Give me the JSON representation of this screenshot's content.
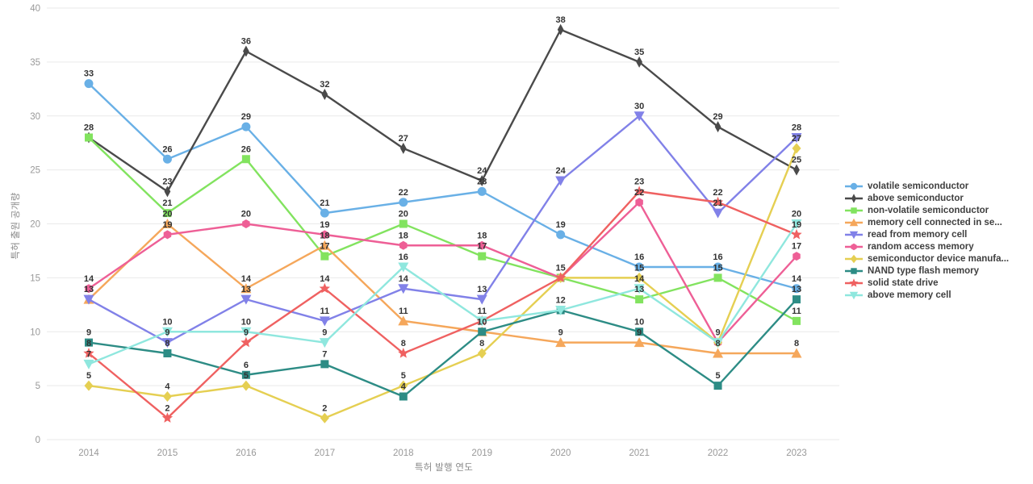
{
  "chart": {
    "xlabel": "특허 발행 연도",
    "ylabel": "특허 출원 공개량"
  },
  "chart_data": {
    "type": "line",
    "title": "",
    "xlabel": "특허 발행 연도",
    "ylabel": "특허 출원 공개량",
    "x": [
      2014,
      2015,
      2016,
      2017,
      2018,
      2019,
      2020,
      2021,
      2022,
      2023
    ],
    "ylim": [
      0,
      40
    ],
    "yticks": [
      0,
      5,
      10,
      15,
      20,
      25,
      30,
      35,
      40
    ],
    "grid": "horizontal-only",
    "legend_position": "right",
    "point_labels": true,
    "colors": {
      "grid": "#e9e9e9",
      "tick_text": "#999999",
      "point_label_text": "#333333"
    },
    "series": [
      {
        "name": "volatile semiconductor",
        "color": "#69b0e6",
        "marker": "circle",
        "values": [
          33,
          26,
          29,
          21,
          22,
          23,
          19,
          16,
          16,
          14
        ]
      },
      {
        "name": "above semiconductor",
        "color": "#4a4a4a",
        "marker": "thin-diamond",
        "values": [
          28,
          23,
          36,
          32,
          27,
          24,
          38,
          35,
          29,
          25
        ]
      },
      {
        "name": "non-volatile semiconductor",
        "color": "#82e35f",
        "marker": "square",
        "values": [
          28,
          21,
          26,
          17,
          20,
          17,
          15,
          13,
          15,
          11
        ]
      },
      {
        "name": "memory cell connected in se...",
        "color": "#f5a75b",
        "marker": "triangle-up",
        "values": [
          13,
          20,
          14,
          18,
          11,
          10,
          9,
          9,
          8,
          8
        ]
      },
      {
        "name": "read from memory cell",
        "color": "#8181e8",
        "marker": "triangle-down",
        "values": [
          13,
          9,
          13,
          11,
          14,
          13,
          24,
          30,
          21,
          28
        ]
      },
      {
        "name": "random access memory",
        "color": "#ee5f96",
        "marker": "hexagon",
        "values": [
          14,
          19,
          20,
          19,
          18,
          18,
          15,
          22,
          9,
          17
        ]
      },
      {
        "name": "semiconductor device manufa...",
        "color": "#e5cf52",
        "marker": "diamond",
        "values": [
          5,
          4,
          5,
          2,
          5,
          8,
          15,
          15,
          9,
          27
        ]
      },
      {
        "name": "NAND type flash memory",
        "color": "#2d8c85",
        "marker": "square",
        "values": [
          9,
          8,
          6,
          7,
          4,
          10,
          12,
          10,
          5,
          13
        ]
      },
      {
        "name": "solid state drive",
        "color": "#ef6161",
        "marker": "star",
        "values": [
          8,
          2,
          9,
          14,
          8,
          11,
          15,
          23,
          22,
          19
        ]
      },
      {
        "name": "above memory cell",
        "color": "#8fe7de",
        "marker": "triangle-down",
        "values": [
          7,
          10,
          10,
          9,
          16,
          11,
          12,
          14,
          9,
          20
        ]
      }
    ]
  }
}
